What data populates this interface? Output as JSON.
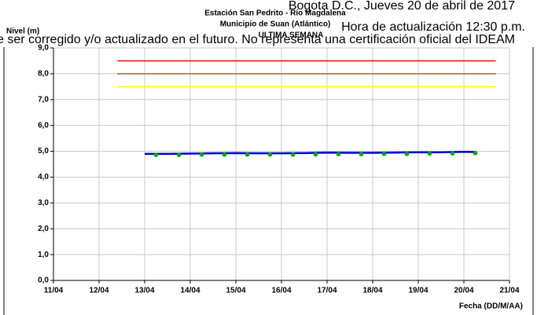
{
  "header": {
    "date": "Bogota D.C., Jueves 20  de abril de 2017",
    "updated": "Hora de actualización 12:30 p.m.",
    "disclaimer": "Este dato puede ser corregido y/o actualizado en el futuro. No representa una certificación oficial del IDEAM"
  },
  "chart_data": {
    "type": "line",
    "title": "Estación San Pedrito - Río Magdalena",
    "subtitle": "Municipio de Suan (Atlántico)",
    "period": "ULTIMA SEMANA",
    "y_label": "Nivel (m)",
    "x_label": "Fecha (DD/M/AA)",
    "xlim": [
      11,
      21
    ],
    "xticks": [
      {
        "value": 11,
        "label": "11/04"
      },
      {
        "value": 12,
        "label": "12/04"
      },
      {
        "value": 13,
        "label": "13/04"
      },
      {
        "value": 14,
        "label": "14/04"
      },
      {
        "value": 15,
        "label": "15/04"
      },
      {
        "value": 16,
        "label": "16/04"
      },
      {
        "value": 17,
        "label": "17/04"
      },
      {
        "value": 18,
        "label": "18/04"
      },
      {
        "value": 19,
        "label": "19/04"
      },
      {
        "value": 20,
        "label": "20/04"
      },
      {
        "value": 21,
        "label": "21/04"
      }
    ],
    "ylim": [
      0,
      9
    ],
    "yticks": [
      {
        "value": 0,
        "label": "0,0"
      },
      {
        "value": 1,
        "label": "1,0"
      },
      {
        "value": 2,
        "label": "2,0"
      },
      {
        "value": 3,
        "label": "3,0"
      },
      {
        "value": 4,
        "label": "4,0"
      },
      {
        "value": 5,
        "label": "5,0"
      },
      {
        "value": 6,
        "label": "6,0"
      },
      {
        "value": 7,
        "label": "7,0"
      },
      {
        "value": 8,
        "label": "8,0"
      },
      {
        "value": 9,
        "label": "9,0"
      }
    ],
    "grid": true,
    "series": [
      {
        "color": "#ff0000",
        "mode": "line",
        "x": [
          12.4,
          20.7
        ],
        "values": [
          8.5,
          8.5
        ]
      },
      {
        "color": "#996633",
        "mode": "line",
        "x": [
          12.4,
          20.7
        ],
        "values": [
          8.0,
          8.0
        ]
      },
      {
        "color": "#ffff00",
        "mode": "line",
        "x": [
          12.4,
          20.7
        ],
        "values": [
          7.5,
          7.5
        ]
      },
      {
        "color": "#0000cc",
        "mode": "line",
        "x": [
          13.0,
          13.5,
          14.0,
          14.5,
          15.0,
          15.5,
          16.0,
          16.5,
          17.0,
          17.5,
          18.0,
          18.5,
          19.0,
          19.5,
          20.0,
          20.25
        ],
        "values": [
          4.9,
          4.9,
          4.91,
          4.92,
          4.93,
          4.92,
          4.92,
          4.93,
          4.95,
          4.94,
          4.94,
          4.95,
          4.96,
          4.96,
          4.98,
          4.97
        ]
      },
      {
        "color": "#00aa00",
        "mode": "markers",
        "x": [
          13.25,
          13.75,
          14.25,
          14.75,
          15.25,
          15.75,
          16.25,
          16.75,
          17.25,
          17.75,
          18.25,
          18.75,
          19.25,
          19.75,
          20.25
        ],
        "values": [
          4.86,
          4.86,
          4.87,
          4.87,
          4.87,
          4.87,
          4.87,
          4.88,
          4.89,
          4.89,
          4.9,
          4.9,
          4.91,
          4.92,
          4.93
        ]
      }
    ]
  }
}
